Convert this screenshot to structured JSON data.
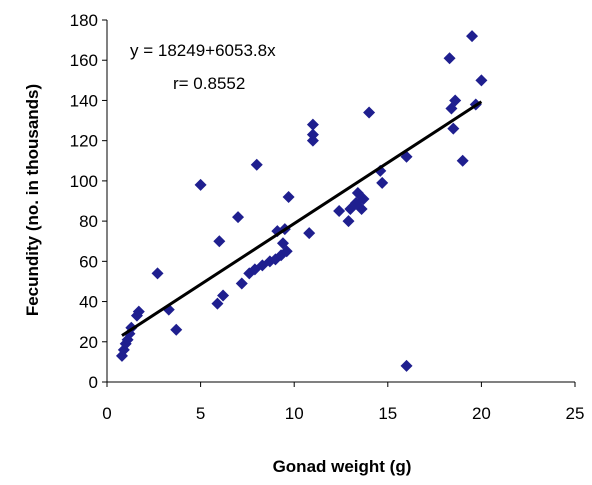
{
  "chart_data": {
    "type": "scatter",
    "title": "",
    "xlabel": "Gonad weight (g)",
    "ylabel": "Fecundity (no. in thousands)",
    "xlim": [
      0,
      25
    ],
    "ylim": [
      0,
      180
    ],
    "x_ticks": [
      0,
      5,
      10,
      15,
      20,
      25
    ],
    "y_ticks": [
      0,
      20,
      40,
      60,
      80,
      100,
      120,
      140,
      160,
      180
    ],
    "grid": false,
    "legend": "none",
    "marker": "diamond",
    "marker_color": "#1f1f8f",
    "trendline_color": "#000000",
    "annotations": {
      "equation": "y = 18249+6053.8x",
      "r": "r= 0.8552"
    },
    "trendline": {
      "intercept": 18.249,
      "slope": 6.0538
    },
    "points": [
      [
        0.8,
        13
      ],
      [
        0.9,
        16
      ],
      [
        1.0,
        19
      ],
      [
        1.1,
        21
      ],
      [
        1.2,
        24
      ],
      [
        1.3,
        27
      ],
      [
        1.6,
        33
      ],
      [
        1.7,
        35
      ],
      [
        2.7,
        54
      ],
      [
        3.3,
        36
      ],
      [
        3.7,
        26
      ],
      [
        5.0,
        98
      ],
      [
        5.9,
        39
      ],
      [
        6.0,
        70
      ],
      [
        6.2,
        43
      ],
      [
        7.0,
        82
      ],
      [
        7.2,
        49
      ],
      [
        7.6,
        54
      ],
      [
        7.9,
        56
      ],
      [
        8.0,
        108
      ],
      [
        8.3,
        58
      ],
      [
        8.7,
        60
      ],
      [
        9.0,
        61
      ],
      [
        9.1,
        75
      ],
      [
        9.3,
        63
      ],
      [
        9.4,
        69
      ],
      [
        9.5,
        76
      ],
      [
        9.6,
        65
      ],
      [
        9.7,
        92
      ],
      [
        10.8,
        74
      ],
      [
        11.0,
        120
      ],
      [
        11.0,
        123
      ],
      [
        11.0,
        128
      ],
      [
        12.4,
        85
      ],
      [
        12.9,
        80
      ],
      [
        13.0,
        86
      ],
      [
        13.3,
        89
      ],
      [
        13.4,
        94
      ],
      [
        13.6,
        86
      ],
      [
        13.7,
        91
      ],
      [
        14.0,
        134
      ],
      [
        14.6,
        105
      ],
      [
        14.7,
        99
      ],
      [
        16.0,
        112
      ],
      [
        16.0,
        8
      ],
      [
        18.3,
        161
      ],
      [
        18.4,
        136
      ],
      [
        18.5,
        126
      ],
      [
        18.6,
        140
      ],
      [
        19.0,
        110
      ],
      [
        19.5,
        172
      ],
      [
        19.7,
        138
      ],
      [
        20.0,
        150
      ]
    ]
  }
}
